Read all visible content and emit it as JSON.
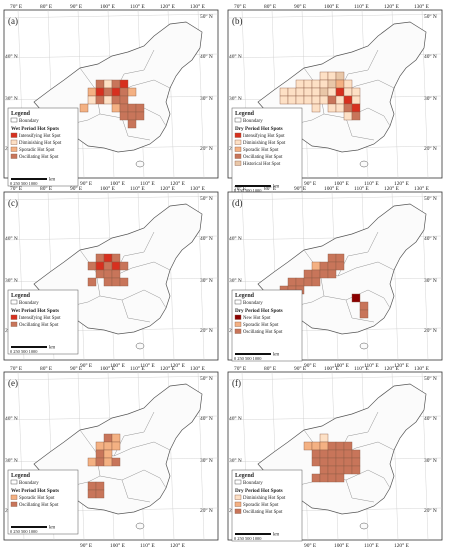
{
  "panels": [
    {
      "letter": "(a)",
      "legend_title": "Legend",
      "boundary_label": "Boundary",
      "section_title": "Wet Period Hot Spots",
      "items": [
        {
          "label": "Intensifying Hot Spot",
          "color": "#d7301f"
        },
        {
          "label": "Diminishing Hot Spot",
          "color": "#fde0c5"
        },
        {
          "label": "Sporadic Hot Spot",
          "color": "#f4b183"
        },
        {
          "label": "Oscillating Hot Spot",
          "color": "#c8755a"
        }
      ]
    },
    {
      "letter": "(b)",
      "legend_title": "Legend",
      "boundary_label": "Boundary",
      "section_title": "Dry Period Hot Spots",
      "items": [
        {
          "label": "Intensifying Hot Spot",
          "color": "#d7301f"
        },
        {
          "label": "Diminishing Hot Spot",
          "color": "#fde0c5"
        },
        {
          "label": "Sporadic Hot Spot",
          "color": "#f4b183"
        },
        {
          "label": "Oscillating Hot Spot",
          "color": "#c8755a"
        },
        {
          "label": "Historical Hot Spot",
          "color": "#e9c7a8"
        }
      ]
    },
    {
      "letter": "(c)",
      "legend_title": "Legend",
      "boundary_label": "Boundary",
      "section_title": "Wet Period Hot Spots",
      "items": [
        {
          "label": "Intensifying Hot Spot",
          "color": "#d7301f"
        },
        {
          "label": "Oscillating Hot Spot",
          "color": "#c8755a"
        }
      ]
    },
    {
      "letter": "(d)",
      "legend_title": "Legend",
      "boundary_label": "Boundary",
      "section_title": "Dry Period Hot Spots",
      "items": [
        {
          "label": "New Hot Spot",
          "color": "#8b0000"
        },
        {
          "label": "Sporadic Hot Spot",
          "color": "#f4b183"
        },
        {
          "label": "Oscillating Hot Spot",
          "color": "#c8755a"
        }
      ]
    },
    {
      "letter": "(e)",
      "legend_title": "Legend",
      "boundary_label": "Boundary",
      "section_title": "Wet Period Hot Spots",
      "items": [
        {
          "label": "Sporadic Hot Spot",
          "color": "#f4b183"
        },
        {
          "label": "Oscillating Hot Spot",
          "color": "#c8755a"
        }
      ]
    },
    {
      "letter": "(f)",
      "legend_title": "Legend",
      "boundary_label": "Boundary",
      "section_title": "Dry Period Hot Spots",
      "items": [
        {
          "label": "Diminishing Hot Spot",
          "color": "#fde0c5"
        },
        {
          "label": "Sporadic Hot Spot",
          "color": "#f4b183"
        },
        {
          "label": "Oscillating Hot Spot",
          "color": "#c8755a"
        }
      ]
    }
  ],
  "lon_labels": [
    "70° E",
    "80° E",
    "90° E",
    "100° E",
    "110° E",
    "120° E",
    "130° E"
  ],
  "lon_labels_bottom": [
    "90° E",
    "100° E",
    "110° E",
    "120° E"
  ],
  "lat_labels": [
    "50° N",
    "40° N",
    "30° N",
    "20° N"
  ],
  "scale_bar": {
    "ticks": "0   250 500     1000",
    "unit": "km"
  }
}
